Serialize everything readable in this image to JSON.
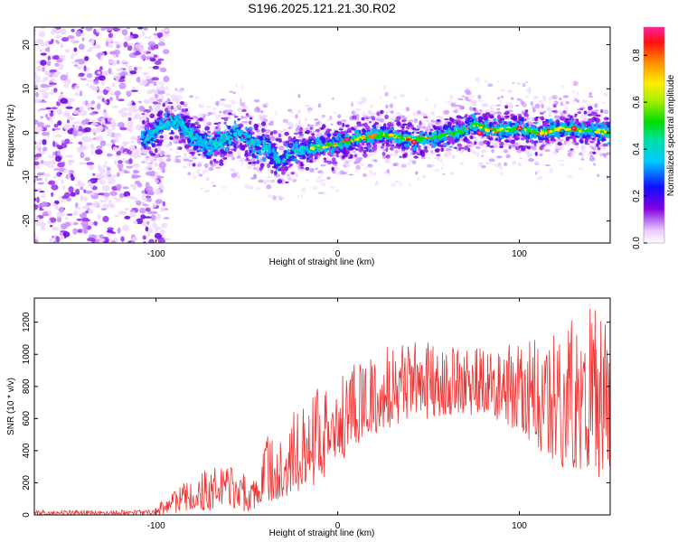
{
  "figure": {
    "title": "S196.2025.121.21.30.R02"
  },
  "chart_data": [
    {
      "type": "heatmap",
      "xlabel": "Height of straight line (km)",
      "ylabel": "Frequency (Hz)",
      "xlim": [
        -167,
        150
      ],
      "ylim": [
        -25,
        24
      ],
      "xticks": [
        "-100",
        "0",
        "100"
      ],
      "yticks": [
        "20",
        "10",
        "0",
        "-10",
        "-20"
      ],
      "colorbar": {
        "label": "Normalized spectral amplitude",
        "range": [
          0,
          0.92
        ],
        "ticks": [
          "0.0",
          "0.2",
          "0.4",
          "0.6",
          "0.8"
        ]
      },
      "noise_region_x": [
        -167,
        -102
      ],
      "ridge_center_hz": [
        [
          -105,
          -1.0
        ],
        [
          -95,
          1.5
        ],
        [
          -88,
          2.5
        ],
        [
          -80,
          -1.0
        ],
        [
          -70,
          -3.0
        ],
        [
          -60,
          -1.0
        ],
        [
          -55,
          0.5
        ],
        [
          -48,
          -2.0
        ],
        [
          -40,
          -3.0
        ],
        [
          -32,
          -6.5
        ],
        [
          -25,
          -4.0
        ],
        [
          -15,
          -3.5
        ],
        [
          0,
          -2.5
        ],
        [
          10,
          -1.5
        ],
        [
          25,
          -0.5
        ],
        [
          40,
          -1.5
        ],
        [
          55,
          -1.0
        ],
        [
          70,
          0.5
        ],
        [
          75,
          2.0
        ],
        [
          85,
          0.5
        ],
        [
          100,
          1.0
        ],
        [
          110,
          0.0
        ],
        [
          125,
          1.0
        ],
        [
          140,
          0.5
        ],
        [
          150,
          0.0
        ]
      ],
      "grid": false,
      "legend": "none"
    },
    {
      "type": "line",
      "xlabel": "Height of straight line (km)",
      "ylabel": "SNR (10 * v/v)",
      "xlim": [
        -167,
        150
      ],
      "ylim": [
        0,
        1350
      ],
      "xticks": [
        "-100",
        "0",
        "100"
      ],
      "yticks": [
        "0",
        "200",
        "400",
        "600",
        "800",
        "1000",
        "1200"
      ],
      "series": [
        {
          "color": "#ee3333",
          "envelope_lower": [
            [
              -167,
              0
            ],
            [
              -100,
              0
            ],
            [
              -92,
              10
            ],
            [
              -75,
              20
            ],
            [
              -60,
              25
            ],
            [
              -45,
              20
            ],
            [
              -38,
              80
            ],
            [
              -25,
              120
            ],
            [
              -10,
              200
            ],
            [
              0,
              320
            ],
            [
              10,
              420
            ],
            [
              20,
              500
            ],
            [
              40,
              580
            ],
            [
              60,
              620
            ],
            [
              80,
              620
            ],
            [
              90,
              580
            ],
            [
              110,
              420
            ],
            [
              120,
              300
            ],
            [
              130,
              280
            ],
            [
              140,
              250
            ],
            [
              150,
              200
            ]
          ],
          "envelope_upper": [
            [
              -167,
              30
            ],
            [
              -105,
              30
            ],
            [
              -95,
              100
            ],
            [
              -85,
              230
            ],
            [
              -75,
              280
            ],
            [
              -65,
              310
            ],
            [
              -55,
              300
            ],
            [
              -45,
              200
            ],
            [
              -38,
              530
            ],
            [
              -30,
              560
            ],
            [
              -20,
              700
            ],
            [
              -10,
              820
            ],
            [
              0,
              860
            ],
            [
              10,
              950
            ],
            [
              20,
              980
            ],
            [
              30,
              1080
            ],
            [
              50,
              1080
            ],
            [
              70,
              1030
            ],
            [
              90,
              1050
            ],
            [
              110,
              1100
            ],
            [
              125,
              1200
            ],
            [
              130,
              1340
            ],
            [
              140,
              1300
            ],
            [
              150,
              1200
            ]
          ]
        }
      ],
      "grid": false,
      "legend": "none"
    }
  ]
}
